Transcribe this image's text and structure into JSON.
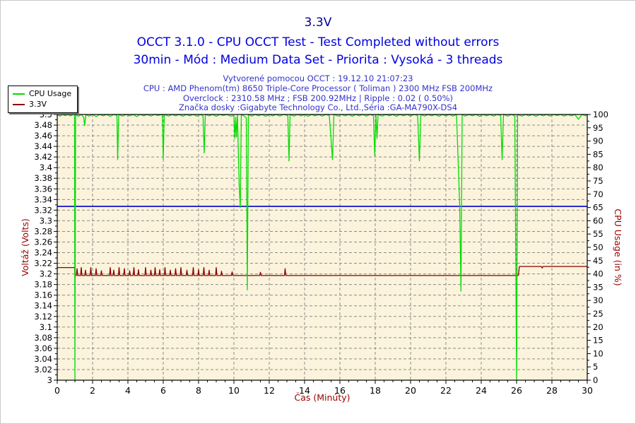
{
  "header": {
    "title": "3.3V",
    "subtitle1": "OCCT 3.1.0 - CPU OCCT Test - Test Completed without errors",
    "subtitle2": "30min - Mód : Medium Data Set - Priorita : Vysoká - 3 threads",
    "info_lines": [
      "Vytvorené pomocou OCCT : 19.12.10 21:07:23",
      "CPU : AMD Phenom(tm) 8650 Triple-Core Processor ( Toliman ) 2300 MHz FSB 200MHz",
      "Overclock : 2310.58 MHz ; FSB 200.92MHz | Ripple : 0.02 ( 0.50%)",
      "Značka dosky :Gigabyte Technology Co., Ltd.,Séria :GA-MA790X-DS4"
    ]
  },
  "legend": {
    "items": [
      {
        "label": "CPU Usage",
        "color": "#00dc00"
      },
      {
        "label": "3.3V",
        "color": "#8b0000"
      }
    ]
  },
  "chart_data": {
    "type": "line",
    "title": "3.3V",
    "plot_background": "#fbf3dc",
    "grid": {
      "color": "#8c8c8c",
      "dash": "4 3",
      "on": true
    },
    "x_axis": {
      "label": "Čas (Minúty)",
      "min": 0,
      "max": 30,
      "major_step": 2,
      "minor_step": 0.5,
      "tick_labels": [
        "0",
        "2",
        "4",
        "6",
        "8",
        "10",
        "12",
        "14",
        "16",
        "18",
        "20",
        "22",
        "24",
        "26",
        "28",
        "30"
      ]
    },
    "y_left": {
      "label": "Voltáž (Volts)",
      "min": 3,
      "max": 3.5,
      "major_step": 0.02,
      "minor_step": 0.01,
      "tick_labels": [
        "3.5",
        "3.48",
        "3.46",
        "3.44",
        "3.42",
        "3.4",
        "3.38",
        "3.36",
        "3.34",
        "3.32",
        "3.3",
        "3.28",
        "3.26",
        "3.24",
        "3.22",
        "3.2",
        "3.18",
        "3.16",
        "3.14",
        "3.12",
        "3.1",
        "3.08",
        "3.06",
        "3.04",
        "3.02",
        "3"
      ]
    },
    "y_right": {
      "label": "CPU Usage (in %)",
      "min": 0,
      "max": 100,
      "major_step": 5,
      "minor_step": 2.5,
      "tick_labels": [
        "100",
        "95",
        "90",
        "85",
        "80",
        "75",
        "70",
        "65",
        "60",
        "55",
        "50",
        "45",
        "40",
        "35",
        "30",
        "25",
        "20",
        "15",
        "10",
        "5",
        "0"
      ]
    },
    "reference_line": {
      "axis": "left",
      "value": 3.327,
      "color": "#0000cc"
    },
    "series": [
      {
        "name": "3.3V",
        "axis": "left",
        "color": "#8b0000",
        "points": [
          [
            0,
            3.212
          ],
          [
            0.98,
            3.212
          ],
          [
            1,
            3.197
          ],
          [
            1.08,
            3.197
          ],
          [
            1.12,
            3.21
          ],
          [
            1.16,
            3.197
          ],
          [
            1.32,
            3.197
          ],
          [
            1.36,
            3.212
          ],
          [
            1.4,
            3.197
          ],
          [
            1.56,
            3.197
          ],
          [
            1.6,
            3.207
          ],
          [
            1.64,
            3.197
          ],
          [
            1.86,
            3.197
          ],
          [
            1.9,
            3.212
          ],
          [
            1.94,
            3.197
          ],
          [
            2.16,
            3.197
          ],
          [
            2.2,
            3.21
          ],
          [
            2.24,
            3.197
          ],
          [
            2.46,
            3.197
          ],
          [
            2.5,
            3.206
          ],
          [
            2.54,
            3.197
          ],
          [
            2.96,
            3.197
          ],
          [
            3,
            3.212
          ],
          [
            3.04,
            3.197
          ],
          [
            3.16,
            3.197
          ],
          [
            3.2,
            3.207
          ],
          [
            3.24,
            3.197
          ],
          [
            3.46,
            3.197
          ],
          [
            3.5,
            3.212
          ],
          [
            3.54,
            3.197
          ],
          [
            3.76,
            3.197
          ],
          [
            3.8,
            3.21
          ],
          [
            3.84,
            3.197
          ],
          [
            4.06,
            3.197
          ],
          [
            4.1,
            3.206
          ],
          [
            4.14,
            3.197
          ],
          [
            4.3,
            3.197
          ],
          [
            4.34,
            3.212
          ],
          [
            4.38,
            3.197
          ],
          [
            4.56,
            3.197
          ],
          [
            4.6,
            3.208
          ],
          [
            4.64,
            3.197
          ],
          [
            4.96,
            3.197
          ],
          [
            5,
            3.212
          ],
          [
            5.04,
            3.197
          ],
          [
            5.26,
            3.197
          ],
          [
            5.3,
            3.207
          ],
          [
            5.34,
            3.197
          ],
          [
            5.5,
            3.197
          ],
          [
            5.54,
            3.212
          ],
          [
            5.58,
            3.197
          ],
          [
            5.76,
            3.197
          ],
          [
            5.8,
            3.208
          ],
          [
            5.84,
            3.197
          ],
          [
            6.06,
            3.197
          ],
          [
            6.1,
            3.212
          ],
          [
            6.14,
            3.197
          ],
          [
            6.36,
            3.197
          ],
          [
            6.4,
            3.207
          ],
          [
            6.44,
            3.197
          ],
          [
            6.66,
            3.197
          ],
          [
            6.7,
            3.21
          ],
          [
            6.74,
            3.197
          ],
          [
            6.96,
            3.197
          ],
          [
            7,
            3.212
          ],
          [
            7.04,
            3.197
          ],
          [
            7.3,
            3.197
          ],
          [
            7.34,
            3.207
          ],
          [
            7.38,
            3.197
          ],
          [
            7.66,
            3.197
          ],
          [
            7.7,
            3.212
          ],
          [
            7.74,
            3.197
          ],
          [
            7.96,
            3.197
          ],
          [
            8,
            3.208
          ],
          [
            8.04,
            3.197
          ],
          [
            8.26,
            3.197
          ],
          [
            8.3,
            3.212
          ],
          [
            8.34,
            3.197
          ],
          [
            8.56,
            3.197
          ],
          [
            8.6,
            3.207
          ],
          [
            8.64,
            3.197
          ],
          [
            8.96,
            3.197
          ],
          [
            9,
            3.212
          ],
          [
            9.04,
            3.197
          ],
          [
            9.26,
            3.197
          ],
          [
            9.3,
            3.205
          ],
          [
            9.34,
            3.197
          ],
          [
            9.86,
            3.197
          ],
          [
            9.9,
            3.204
          ],
          [
            9.94,
            3.197
          ],
          [
            11.46,
            3.197
          ],
          [
            11.5,
            3.203
          ],
          [
            11.54,
            3.197
          ],
          [
            12.86,
            3.197
          ],
          [
            12.9,
            3.21
          ],
          [
            12.94,
            3.197
          ],
          [
            26.1,
            3.197
          ],
          [
            26.16,
            3.214
          ],
          [
            27.4,
            3.214
          ],
          [
            27.45,
            3.211
          ],
          [
            27.5,
            3.214
          ],
          [
            30,
            3.214
          ]
        ]
      },
      {
        "name": "CPU Usage",
        "axis": "right",
        "color": "#00dc00",
        "points": [
          [
            0,
            100
          ],
          [
            0.15,
            99.4
          ],
          [
            0.3,
            100
          ],
          [
            0.45,
            99.6
          ],
          [
            0.6,
            100
          ],
          [
            0.75,
            99.5
          ],
          [
            0.9,
            100
          ],
          [
            0.98,
            100
          ],
          [
            1,
            0
          ],
          [
            1.04,
            100
          ],
          [
            1.2,
            99.3
          ],
          [
            1.35,
            100
          ],
          [
            1.5,
            98.9
          ],
          [
            1.55,
            95.8
          ],
          [
            1.62,
            100
          ],
          [
            1.8,
            99.4
          ],
          [
            2,
            100
          ],
          [
            2.2,
            99.2
          ],
          [
            2.4,
            100
          ],
          [
            2.6,
            99.5
          ],
          [
            2.8,
            100
          ],
          [
            3,
            99.3
          ],
          [
            3.2,
            100
          ],
          [
            3.38,
            99.6
          ],
          [
            3.42,
            83
          ],
          [
            3.48,
            100
          ],
          [
            3.7,
            99.4
          ],
          [
            3.9,
            100
          ],
          [
            4.1,
            99.5
          ],
          [
            4.3,
            100
          ],
          [
            4.5,
            99.2
          ],
          [
            4.7,
            100
          ],
          [
            4.9,
            99.5
          ],
          [
            5.1,
            100
          ],
          [
            5.3,
            99.4
          ],
          [
            5.5,
            100
          ],
          [
            5.7,
            99.6
          ],
          [
            5.95,
            100
          ],
          [
            6,
            83
          ],
          [
            6.06,
            100
          ],
          [
            6.3,
            99.4
          ],
          [
            6.5,
            100
          ],
          [
            6.7,
            99.5
          ],
          [
            6.9,
            100
          ],
          [
            7.1,
            99.3
          ],
          [
            7.3,
            100
          ],
          [
            7.5,
            99.5
          ],
          [
            7.7,
            100
          ],
          [
            7.9,
            99.4
          ],
          [
            8.1,
            100
          ],
          [
            8.25,
            99.5
          ],
          [
            8.32,
            85.5
          ],
          [
            8.38,
            100
          ],
          [
            8.6,
            99.5
          ],
          [
            8.8,
            100
          ],
          [
            9,
            99.3
          ],
          [
            9.2,
            100
          ],
          [
            9.4,
            99.6
          ],
          [
            9.6,
            100
          ],
          [
            9.8,
            99.4
          ],
          [
            10,
            99.6
          ],
          [
            10.05,
            91
          ],
          [
            10.1,
            99
          ],
          [
            10.14,
            91.5
          ],
          [
            10.2,
            100
          ],
          [
            10.3,
            73
          ],
          [
            10.36,
            65
          ],
          [
            10.42,
            100
          ],
          [
            10.55,
            99.5
          ],
          [
            10.7,
            98.8
          ],
          [
            10.76,
            34
          ],
          [
            10.82,
            100
          ],
          [
            11,
            99.4
          ],
          [
            11.2,
            100
          ],
          [
            11.4,
            99.5
          ],
          [
            11.6,
            100
          ],
          [
            11.8,
            99.3
          ],
          [
            12,
            100
          ],
          [
            12.2,
            99.5
          ],
          [
            12.4,
            100
          ],
          [
            12.6,
            99.4
          ],
          [
            12.8,
            100
          ],
          [
            13.05,
            99.6
          ],
          [
            13.12,
            82.5
          ],
          [
            13.18,
            100
          ],
          [
            13.4,
            99.4
          ],
          [
            13.6,
            100
          ],
          [
            13.8,
            99.5
          ],
          [
            14,
            100
          ],
          [
            14.2,
            99.3
          ],
          [
            14.4,
            100
          ],
          [
            14.6,
            99.5
          ],
          [
            14.8,
            100
          ],
          [
            15,
            99.4
          ],
          [
            15.2,
            100
          ],
          [
            15.4,
            99.6
          ],
          [
            15.58,
            83
          ],
          [
            15.66,
            100
          ],
          [
            15.9,
            99.4
          ],
          [
            16.1,
            100
          ],
          [
            16.3,
            99.5
          ],
          [
            16.5,
            100
          ],
          [
            16.7,
            99.3
          ],
          [
            16.9,
            100
          ],
          [
            17.1,
            99.5
          ],
          [
            17.3,
            100
          ],
          [
            17.5,
            99.4
          ],
          [
            17.7,
            100
          ],
          [
            17.9,
            99.6
          ],
          [
            17.97,
            84.5
          ],
          [
            18.04,
            100
          ],
          [
            18.1,
            91
          ],
          [
            18.16,
            100
          ],
          [
            18.4,
            99.4
          ],
          [
            18.6,
            100
          ],
          [
            18.8,
            99.5
          ],
          [
            19,
            100
          ],
          [
            19.2,
            99.3
          ],
          [
            19.4,
            100
          ],
          [
            19.6,
            99.5
          ],
          [
            19.8,
            100
          ],
          [
            20,
            99.4
          ],
          [
            20.2,
            100
          ],
          [
            20.4,
            99.6
          ],
          [
            20.5,
            82.5
          ],
          [
            20.58,
            100
          ],
          [
            20.8,
            99.4
          ],
          [
            21,
            100
          ],
          [
            21.2,
            99.5
          ],
          [
            21.4,
            100
          ],
          [
            21.6,
            99.3
          ],
          [
            21.8,
            100
          ],
          [
            22,
            99.5
          ],
          [
            22.2,
            100
          ],
          [
            22.4,
            99.4
          ],
          [
            22.6,
            100
          ],
          [
            22.78,
            66
          ],
          [
            22.85,
            33.5
          ],
          [
            22.92,
            100
          ],
          [
            23.1,
            99.4
          ],
          [
            23.3,
            100
          ],
          [
            23.5,
            99.5
          ],
          [
            23.7,
            100
          ],
          [
            23.9,
            99.3
          ],
          [
            24.1,
            100
          ],
          [
            24.3,
            99.5
          ],
          [
            24.5,
            100
          ],
          [
            24.7,
            99.4
          ],
          [
            24.9,
            100
          ],
          [
            25.1,
            99.6
          ],
          [
            25.18,
            83
          ],
          [
            25.26,
            100
          ],
          [
            25.5,
            99.4
          ],
          [
            25.7,
            100
          ],
          [
            25.9,
            99.5
          ],
          [
            26,
            0
          ],
          [
            26.06,
            100
          ],
          [
            26.3,
            99.4
          ],
          [
            26.5,
            100
          ],
          [
            26.7,
            99.5
          ],
          [
            26.9,
            100
          ],
          [
            27.1,
            99.3
          ],
          [
            27.3,
            100
          ],
          [
            27.5,
            99.5
          ],
          [
            27.7,
            100
          ],
          [
            27.9,
            99.4
          ],
          [
            28.1,
            100
          ],
          [
            28.3,
            99.6
          ],
          [
            28.5,
            100
          ],
          [
            28.7,
            99.4
          ],
          [
            28.9,
            100
          ],
          [
            29.1,
            99.5
          ],
          [
            29.3,
            100
          ],
          [
            29.5,
            98.2
          ],
          [
            29.7,
            100
          ],
          [
            29.9,
            99.5
          ],
          [
            30,
            100
          ]
        ]
      }
    ]
  }
}
